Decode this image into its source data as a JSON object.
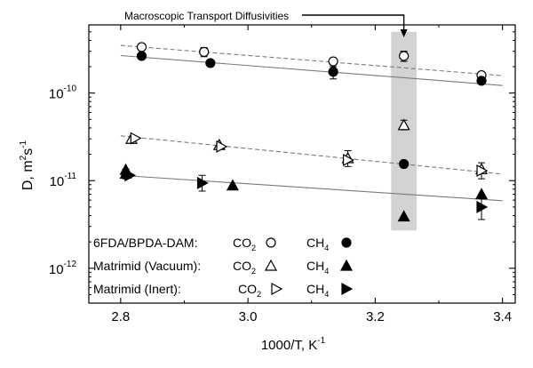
{
  "chart_data": {
    "type": "scatter",
    "title": "",
    "xlabel": "1000/T, K",
    "xlabel_sup": "-1",
    "ylabel": "D, m",
    "ylabel_sup1": "2",
    "ylabel_mid": "s",
    "ylabel_sup2": "-1",
    "xlim": [
      2.75,
      3.42
    ],
    "ylim": [
      4e-13,
      6e-10
    ],
    "yscale": "log",
    "grid": false,
    "x_ticks": [
      {
        "value": 2.8,
        "label": "2.8"
      },
      {
        "value": 3.0,
        "label": "3.0"
      },
      {
        "value": 3.2,
        "label": "3.2"
      },
      {
        "value": 3.4,
        "label": "3.4"
      }
    ],
    "y_ticks": [
      {
        "value": 1e-12,
        "base": "10",
        "exp": "-12"
      },
      {
        "value": 1e-11,
        "base": "10",
        "exp": "-11"
      },
      {
        "value": 1e-10,
        "base": "10",
        "exp": "-10"
      }
    ],
    "annotation": {
      "text": "Macroscopic Transport Diffusivities",
      "x": 3.245,
      "shade_x": [
        3.225,
        3.265
      ],
      "shade_y": [
        2.7e-12,
        5e-10
      ]
    },
    "fit_lines": [
      {
        "style": "dashed",
        "x": [
          2.8,
          3.4
        ],
        "y": [
          3.5e-10,
          1.58e-10
        ]
      },
      {
        "style": "solid",
        "x": [
          2.8,
          3.4
        ],
        "y": [
          2.68e-10,
          1.22e-10
        ]
      },
      {
        "style": "dashed",
        "x": [
          2.8,
          3.4
        ],
        "y": [
          3.25e-11,
          1.19e-11
        ]
      },
      {
        "style": "solid",
        "x": [
          2.8,
          3.4
        ],
        "y": [
          1.15e-11,
          5.9e-12
        ]
      }
    ],
    "series": [
      {
        "marker": "circle-open",
        "points": [
          {
            "x": 2.833,
            "y": 3.35e-10
          },
          {
            "x": 2.931,
            "y": 2.95e-10,
            "err": [
              2.6e-10,
              3.3e-10
            ]
          },
          {
            "x": 3.134,
            "y": 2.3e-10
          },
          {
            "x": 3.245,
            "y": 2.65e-10,
            "err": [
              2.3e-10,
              3e-10
            ]
          },
          {
            "x": 3.367,
            "y": 1.6e-10
          }
        ]
      },
      {
        "marker": "circle-filled",
        "points": [
          {
            "x": 2.833,
            "y": 2.65e-10
          },
          {
            "x": 2.941,
            "y": 2.2e-10
          },
          {
            "x": 3.134,
            "y": 1.75e-10,
            "err": [
              1.45e-10,
              2e-10
            ]
          },
          {
            "x": 3.245,
            "y": 1.55e-11
          },
          {
            "x": 3.367,
            "y": 1.38e-10
          }
        ]
      },
      {
        "marker": "triangle-up-open",
        "points": [
          {
            "x": 2.817,
            "y": 3e-11
          },
          {
            "x": 2.955,
            "y": 2.55e-11
          },
          {
            "x": 3.157,
            "y": 1.8e-11,
            "err": [
              1.45e-11,
              2.2e-11
            ]
          },
          {
            "x": 3.245,
            "y": 4.3e-11,
            "err": [
              3.8e-11,
              4.9e-11
            ]
          },
          {
            "x": 3.367,
            "y": 1.35e-11,
            "err": [
              1.05e-11,
              1.6e-11
            ]
          }
        ]
      },
      {
        "marker": "triangle-up-filled",
        "points": [
          {
            "x": 2.808,
            "y": 1.33e-11
          },
          {
            "x": 2.808,
            "y": 1.2e-11,
            "err": [
              1.05e-11,
              1.35e-11
            ]
          },
          {
            "x": 2.976,
            "y": 8.8e-12
          },
          {
            "x": 3.245,
            "y": 3.9e-12
          },
          {
            "x": 3.367,
            "y": 7e-12
          }
        ]
      },
      {
        "marker": "triangle-right-open",
        "points": [
          {
            "x": 2.823,
            "y": 3.05e-11
          },
          {
            "x": 2.958,
            "y": 2.45e-11
          },
          {
            "x": 3.157,
            "y": 1.72e-11
          },
          {
            "x": 3.367,
            "y": 1.3e-11
          }
        ]
      },
      {
        "marker": "triangle-right-filled",
        "points": [
          {
            "x": 2.814,
            "y": 1.15e-11
          },
          {
            "x": 2.928,
            "y": 9.4e-12,
            "err": [
              7.6e-12,
              1.15e-11
            ]
          },
          {
            "x": 3.367,
            "y": 5e-12,
            "err": [
              3.6e-12,
              6.6e-12
            ]
          }
        ]
      }
    ],
    "legend": {
      "placement": "bottom-left",
      "rows": [
        {
          "label": "6FDA/BPDA-DAM:",
          "sym1": "circle-open",
          "sym2": "circle-filled"
        },
        {
          "label": "Matrimid (Vacuum):",
          "sym1": "triangle-up-open",
          "sym2": "triangle-up-filled"
        },
        {
          "label": "Matrimid (Inert):",
          "sym1": "triangle-right-open",
          "sym2": "triangle-right-filled"
        }
      ],
      "gas1": "CO",
      "gas1_sub": "2",
      "gas2": "CH",
      "gas2_sub": "4"
    }
  }
}
